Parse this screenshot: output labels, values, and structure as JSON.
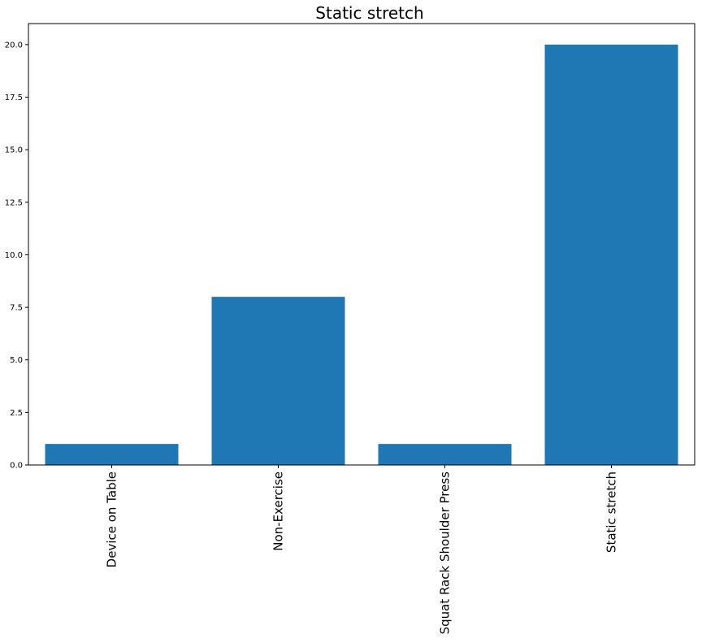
{
  "chart_data": {
    "type": "bar",
    "title": "Static stretch",
    "xlabel": "",
    "ylabel": "",
    "categories": [
      "Device on Table",
      "Non-Exercise",
      "Squat Rack Shoulder Press",
      "Static stretch"
    ],
    "values": [
      1,
      8,
      1,
      20
    ],
    "ylim": [
      0,
      21
    ],
    "yticks": [
      "0.0",
      "2.5",
      "5.0",
      "7.5",
      "10.0",
      "12.5",
      "15.0",
      "17.5",
      "20.0"
    ],
    "grid": false,
    "bar_color": "#1f77b4",
    "x_tick_rotation": "vertical"
  }
}
